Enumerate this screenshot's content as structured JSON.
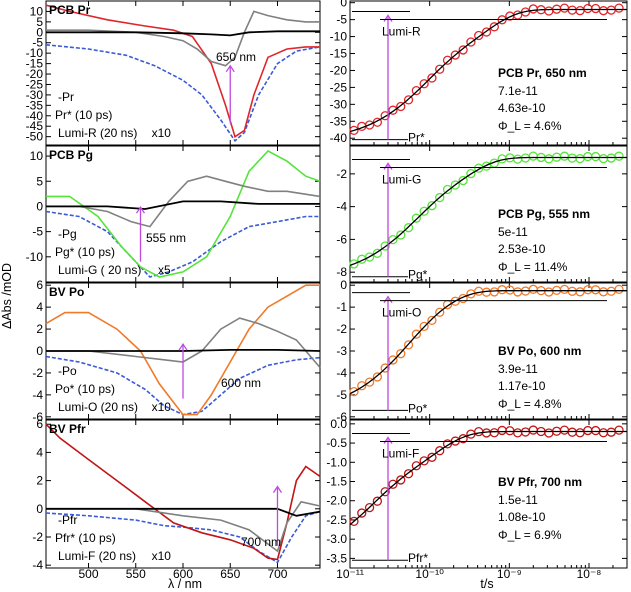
{
  "figure": {
    "ylabel": "ΔAbs /mOD",
    "xlabel_left": "λ / nm",
    "xlabel_right": "t/s"
  },
  "colors": {
    "ground": "#3b5bd6",
    "excited_pcb_pr": "#e0262b",
    "excited_pcb_pg": "#55e43a",
    "excited_bv_po": "#f07a2a",
    "excited_bv_pfr": "#c01515",
    "lumi": "#808080",
    "black": "#000000",
    "magenta": "#c048e0"
  },
  "chart_data": [
    {
      "type": "line",
      "panel": "spectra",
      "title": "PCB Pr",
      "xlim": [
        455,
        745
      ],
      "ylim": [
        -54,
        15
      ],
      "yticks": [
        10,
        5,
        0,
        -5,
        -10,
        -15,
        -20,
        -25,
        -30,
        -35,
        -40,
        -45,
        -50
      ],
      "xticks": [
        500,
        550,
        600,
        650,
        700
      ],
      "arrow_label": "650 nm",
      "arrow_x": 650,
      "legend": [
        "-Pr",
        "Pr* (10 ps)",
        "Lumi-R (20 ns)",
        "x10"
      ],
      "series": [
        {
          "name": "Pr",
          "style": "dashed",
          "color": "ground",
          "x": [
            455,
            500,
            540,
            570,
            600,
            620,
            640,
            655,
            665,
            680,
            700,
            720,
            745
          ],
          "y": [
            -6,
            -8,
            -11,
            -16,
            -23,
            -30,
            -42,
            -52,
            -48,
            -30,
            -15,
            -9,
            -7
          ]
        },
        {
          "name": "Pr*",
          "color": "excited_pcb_pr",
          "x": [
            455,
            480,
            520,
            560,
            590,
            610,
            630,
            645,
            655,
            665,
            675,
            690,
            710,
            730,
            745
          ],
          "y": [
            13,
            10,
            6,
            3,
            1,
            -2,
            -15,
            -35,
            -50,
            -47,
            -30,
            -12,
            -8,
            -7,
            -7
          ]
        },
        {
          "name": "Lumi-R",
          "color": "lumi",
          "x": [
            455,
            500,
            550,
            580,
            600,
            615,
            630,
            645,
            655,
            665,
            675,
            690,
            710,
            730,
            745
          ],
          "y": [
            1,
            1,
            0,
            -2,
            -4,
            -8,
            -14,
            -16,
            -12,
            0,
            10,
            8,
            6,
            5,
            5
          ]
        },
        {
          "name": "black",
          "color": "black",
          "x": [
            455,
            500,
            550,
            600,
            630,
            650,
            670,
            700,
            745
          ],
          "y": [
            0,
            0,
            0,
            -0.5,
            -1,
            -1.5,
            0,
            0.5,
            0.5
          ]
        }
      ]
    },
    {
      "type": "line",
      "panel": "spectra",
      "title": "PCB Pg",
      "xlim": [
        455,
        745
      ],
      "ylim": [
        -15,
        12
      ],
      "yticks": [
        10,
        5,
        0,
        -5,
        -10
      ],
      "xticks": [
        500,
        550,
        600,
        650,
        700
      ],
      "arrow_label": "555 nm",
      "arrow_x": 555,
      "legend": [
        "-Pg",
        "Pg* (10 ps)",
        "Lumi-G ( 20 ns)",
        "x5"
      ],
      "series": [
        {
          "name": "Pg",
          "style": "dashed",
          "color": "ground",
          "x": [
            455,
            490,
            520,
            545,
            565,
            585,
            610,
            640,
            670,
            700,
            730,
            745
          ],
          "y": [
            -1,
            -2,
            -5,
            -10,
            -14,
            -13,
            -11,
            -7,
            -4,
            -3,
            -2,
            -2
          ]
        },
        {
          "name": "Pg*",
          "color": "excited_pcb_pg",
          "x": [
            455,
            480,
            510,
            535,
            555,
            575,
            600,
            625,
            650,
            670,
            690,
            710,
            730,
            745
          ],
          "y": [
            2,
            2,
            -2,
            -8,
            -12,
            -14,
            -13,
            -10,
            -2,
            7,
            11,
            9,
            6,
            5
          ]
        },
        {
          "name": "Lumi-G",
          "color": "lumi",
          "x": [
            455,
            490,
            520,
            545,
            565,
            585,
            605,
            625,
            645,
            665,
            690,
            710,
            745
          ],
          "y": [
            0,
            0,
            -1,
            -3,
            -4,
            1,
            5,
            6,
            5,
            4,
            3,
            3,
            2
          ]
        },
        {
          "name": "black",
          "color": "black",
          "x": [
            455,
            520,
            560,
            600,
            640,
            680,
            720,
            745
          ],
          "y": [
            0,
            0,
            -0.5,
            1,
            1,
            0.5,
            0.5,
            0.5
          ]
        }
      ]
    },
    {
      "type": "line",
      "panel": "spectra",
      "title": "BV Po",
      "xlim": [
        455,
        745
      ],
      "ylim": [
        -6.2,
        6.2
      ],
      "yticks": [
        6,
        4,
        2,
        0,
        -2,
        -4,
        -6
      ],
      "xticks": [
        500,
        550,
        600,
        650,
        700
      ],
      "arrow_label": "600 nm",
      "arrow_x": 600,
      "legend": [
        "-Po",
        "Po* (10 ps)",
        "Lumi-O (20 ns)",
        "x10"
      ],
      "series": [
        {
          "name": "Po",
          "style": "dashed",
          "color": "ground",
          "x": [
            455,
            490,
            530,
            560,
            580,
            600,
            620,
            640,
            660,
            690,
            720,
            745
          ],
          "y": [
            -0.5,
            -1,
            -2,
            -3.5,
            -5,
            -5.8,
            -5.5,
            -4,
            -2.5,
            -1.3,
            -0.8,
            -0.6
          ]
        },
        {
          "name": "Po*",
          "color": "excited_bv_po",
          "x": [
            455,
            475,
            500,
            530,
            555,
            575,
            600,
            615,
            630,
            650,
            670,
            690,
            710,
            730,
            745
          ],
          "y": [
            2.5,
            3.5,
            3.5,
            2,
            0,
            -3,
            -5.8,
            -5.8,
            -4,
            -1,
            2,
            4,
            5,
            6,
            6
          ]
        },
        {
          "name": "Lumi-O",
          "color": "lumi",
          "x": [
            455,
            500,
            550,
            580,
            600,
            620,
            640,
            660,
            680,
            700,
            720,
            745
          ],
          "y": [
            0,
            0,
            -0.5,
            -0.8,
            -1,
            0,
            2,
            3,
            2.5,
            1.8,
            1,
            -1.5
          ]
        },
        {
          "name": "black",
          "color": "black",
          "x": [
            455,
            550,
            600,
            650,
            700,
            745
          ],
          "y": [
            0,
            0,
            0,
            0.1,
            0.1,
            0
          ]
        }
      ]
    },
    {
      "type": "line",
      "panel": "spectra",
      "title": "BV Pfr",
      "xlim": [
        455,
        745
      ],
      "ylim": [
        -4.2,
        6.3
      ],
      "yticks": [
        6,
        4,
        2,
        0,
        -2,
        -4
      ],
      "xticks": [
        500,
        550,
        600,
        650,
        700
      ],
      "arrow_label": "700 nm",
      "arrow_x": 700,
      "legend": [
        "-Pfr",
        "Pfr* (10 ps)",
        "Lumi-F (20 ns)",
        "x10"
      ],
      "series": [
        {
          "name": "Pfr",
          "style": "dashed",
          "color": "ground",
          "x": [
            455,
            500,
            550,
            580,
            600,
            630,
            660,
            680,
            700,
            715,
            730,
            745
          ],
          "y": [
            -0.3,
            -0.5,
            -0.8,
            -1.2,
            -1.3,
            -1.5,
            -2,
            -3,
            -3.8,
            -2,
            -0.5,
            -0.2
          ]
        },
        {
          "name": "Pfr*",
          "color": "excited_bv_pfr",
          "x": [
            455,
            470,
            500,
            530,
            560,
            590,
            620,
            650,
            675,
            690,
            700,
            710,
            720,
            730,
            745
          ],
          "y": [
            6,
            5,
            3.5,
            2,
            0.5,
            -1,
            -1.7,
            -2.2,
            -2.8,
            -3.5,
            -3.6,
            -1,
            2,
            3,
            2.3
          ]
        },
        {
          "name": "Lumi-F",
          "color": "lumi",
          "x": [
            455,
            500,
            550,
            600,
            640,
            670,
            690,
            700,
            710,
            725,
            745
          ],
          "y": [
            0,
            0,
            0,
            -0.5,
            -0.8,
            -1.5,
            -2.5,
            -3,
            -1,
            0.5,
            0.2
          ]
        },
        {
          "name": "black",
          "color": "black",
          "x": [
            455,
            600,
            680,
            700,
            720,
            745
          ],
          "y": [
            0,
            0,
            0,
            0,
            -0.5,
            -0.2
          ]
        }
      ]
    },
    {
      "type": "scatter",
      "panel": "kinetics",
      "title": "PCB Pr, 650 nm",
      "tau1": 7.1e-11,
      "tau2": 4.63e-10,
      "phi": "Φ_L = 4.6%",
      "top_label": "Lumi-R",
      "bottom_label": "Pr*",
      "xscale": "log",
      "xlim": [
        1e-11,
        3e-08
      ],
      "ylim": [
        -42,
        0.5
      ],
      "yticks": [
        0,
        -5,
        -10,
        -15,
        -20,
        -25,
        -30,
        -35,
        -40
      ],
      "marker_color": "excited_pcb_pr",
      "start": -41,
      "end": -2
    },
    {
      "type": "scatter",
      "panel": "kinetics",
      "title": "PCB Pg, 555 nm",
      "tau1": 5e-11,
      "tau2": 2.53e-10,
      "phi": "Φ_L = 11.4%",
      "top_label": "Lumi-G",
      "bottom_label": "Pg*",
      "xscale": "log",
      "xlim": [
        1e-11,
        3e-08
      ],
      "ylim": [
        -8.6,
        -0.3
      ],
      "yticks": [
        -2,
        -4,
        -6,
        -8
      ],
      "marker_color": "excited_pcb_pg",
      "start": -8.4,
      "end": -1.0
    },
    {
      "type": "scatter",
      "panel": "kinetics",
      "title": "BV Po, 600 nm",
      "tau1": 3.9e-11,
      "tau2": 1.17e-10,
      "phi": "Φ_L = 4.8%",
      "top_label": "Lumi-O",
      "bottom_label": "Po*",
      "xscale": "log",
      "xlim": [
        1e-11,
        3e-08
      ],
      "ylim": [
        -6.1,
        0.1
      ],
      "yticks": [
        0,
        -1,
        -2,
        -3,
        -4,
        -5,
        -6
      ],
      "marker_color": "excited_bv_po",
      "start": -5.8,
      "end": -0.25
    },
    {
      "type": "scatter",
      "panel": "kinetics",
      "title": "BV Pfr, 700 nm",
      "tau1": 1.5e-11,
      "tau2": 1.08e-10,
      "phi": "Φ_L = 6.9%",
      "top_label": "Lumi-F",
      "bottom_label": "Pfr*",
      "xscale": "log",
      "xlim": [
        1e-11,
        3e-08
      ],
      "ylim": [
        -3.75,
        0.1
      ],
      "yticks": [
        0,
        -0.5,
        -1.0,
        -1.5,
        -2.0,
        -2.5,
        -3.0,
        -3.5
      ],
      "xticks": [
        "10⁻¹¹",
        "10⁻¹⁰",
        "10⁻⁹",
        "10⁻⁸"
      ],
      "marker_color": "excited_bv_pfr",
      "start": -3.6,
      "end": -0.2
    }
  ]
}
